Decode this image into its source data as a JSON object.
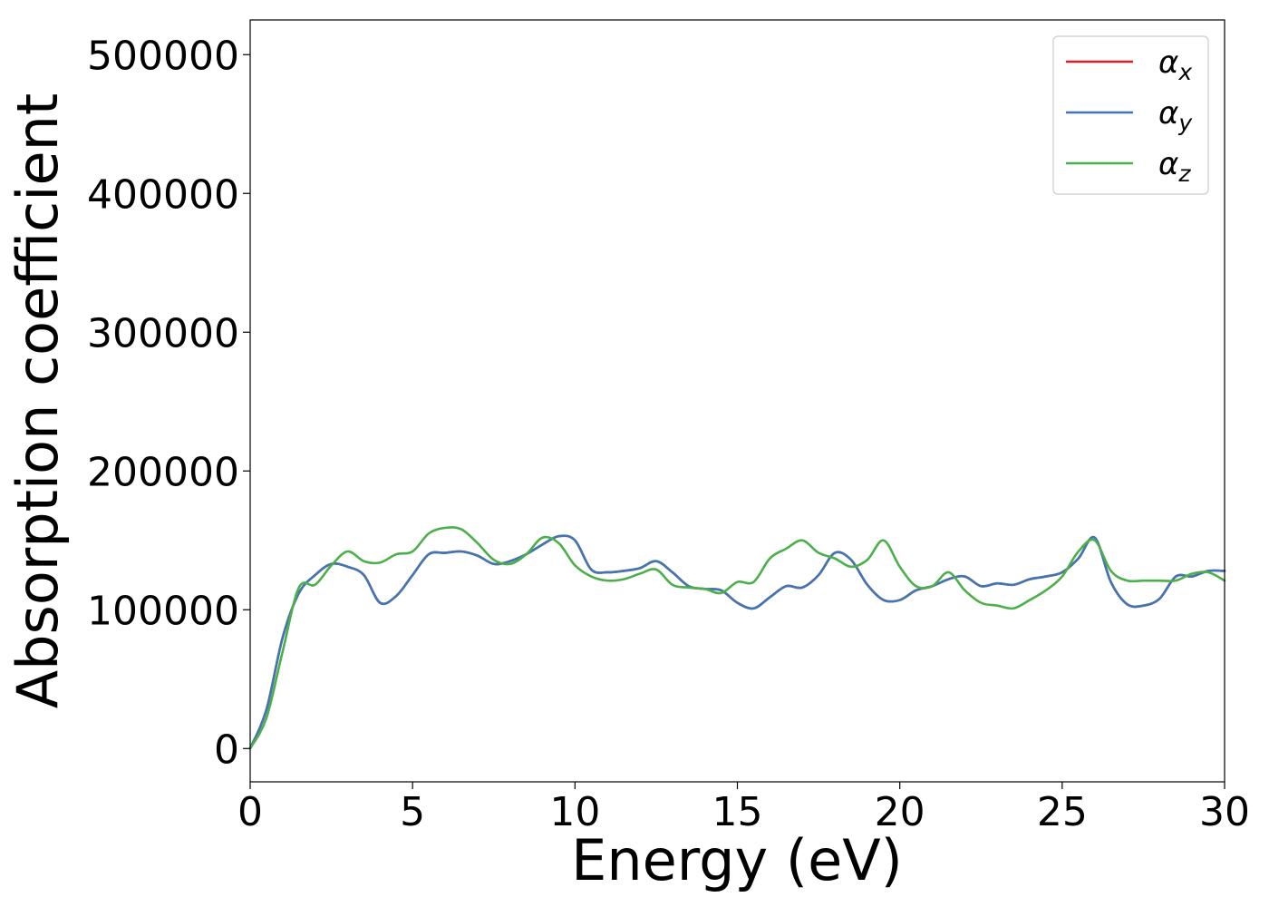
{
  "chart_data": {
    "type": "line",
    "xlabel": "Energy (eV)",
    "ylabel": "Absorption coefficient",
    "xlim": [
      0,
      30
    ],
    "ylim": [
      -24000,
      525000
    ],
    "x_ticks": [
      0,
      5,
      10,
      15,
      20,
      25,
      30
    ],
    "y_ticks": [
      0,
      100000,
      200000,
      300000,
      400000,
      500000
    ],
    "grid": false,
    "legend_position": "top-right",
    "series": [
      {
        "name": "α",
        "subscript": "x",
        "color": "#e41a1c",
        "x": [
          0,
          0.5,
          1,
          1.5,
          2,
          2.5,
          3,
          3.5,
          4,
          4.5,
          5,
          5.5,
          6,
          6.5,
          7,
          7.5,
          8,
          8.5,
          9,
          9.5,
          10,
          10.5,
          11,
          11.5,
          12,
          12.5,
          13,
          13.5,
          14,
          14.5,
          15,
          15.5,
          16,
          16.5,
          17,
          17.5,
          18,
          18.5,
          19,
          19.5,
          20,
          20.5,
          21,
          21.5,
          22,
          22.5,
          23,
          23.5,
          24,
          24.5,
          25,
          25.5,
          26,
          26.5,
          27,
          27.5,
          28,
          28.5,
          29,
          29.5,
          30
        ],
        "values": [
          0,
          28000,
          80000,
          112000,
          125000,
          133000,
          131000,
          125000,
          105000,
          110000,
          125000,
          140000,
          141000,
          142000,
          139000,
          133000,
          135000,
          140000,
          147000,
          153000,
          150000,
          129000,
          127000,
          128000,
          130000,
          135000,
          127000,
          117000,
          115000,
          114000,
          105000,
          101000,
          109000,
          117000,
          116000,
          125000,
          141000,
          136000,
          118000,
          107000,
          107000,
          114000,
          117000,
          122000,
          124000,
          117000,
          119000,
          118000,
          122000,
          124000,
          127000,
          137000,
          152000,
          120000,
          104000,
          103000,
          108000,
          124000,
          124000,
          128000,
          128000
        ]
      },
      {
        "name": "α",
        "subscript": "y",
        "color": "#3f77b5",
        "x": [
          0,
          0.5,
          1,
          1.5,
          2,
          2.5,
          3,
          3.5,
          4,
          4.5,
          5,
          5.5,
          6,
          6.5,
          7,
          7.5,
          8,
          8.5,
          9,
          9.5,
          10,
          10.5,
          11,
          11.5,
          12,
          12.5,
          13,
          13.5,
          14,
          14.5,
          15,
          15.5,
          16,
          16.5,
          17,
          17.5,
          18,
          18.5,
          19,
          19.5,
          20,
          20.5,
          21,
          21.5,
          22,
          22.5,
          23,
          23.5,
          24,
          24.5,
          25,
          25.5,
          26,
          26.5,
          27,
          27.5,
          28,
          28.5,
          29,
          29.5,
          30
        ],
        "values": [
          0,
          28000,
          80000,
          112000,
          125000,
          133000,
          131000,
          125000,
          105000,
          110000,
          125000,
          140000,
          141000,
          142000,
          139000,
          133000,
          135000,
          140000,
          147000,
          153000,
          150000,
          129000,
          127000,
          128000,
          130000,
          135000,
          127000,
          117000,
          115000,
          114000,
          105000,
          101000,
          109000,
          117000,
          116000,
          125000,
          141000,
          136000,
          118000,
          107000,
          107000,
          114000,
          117000,
          122000,
          124000,
          117000,
          119000,
          118000,
          122000,
          124000,
          127000,
          137000,
          152000,
          120000,
          104000,
          103000,
          108000,
          124000,
          124000,
          128000,
          128000
        ]
      },
      {
        "name": "α",
        "subscript": "z",
        "color": "#4daf4a",
        "x": [
          0,
          0.5,
          1,
          1.5,
          2,
          2.5,
          3,
          3.5,
          4,
          4.5,
          5,
          5.5,
          6,
          6.5,
          7,
          7.5,
          8,
          8.5,
          9,
          9.5,
          10,
          10.5,
          11,
          11.5,
          12,
          12.5,
          13,
          13.5,
          14,
          14.5,
          15,
          15.5,
          16,
          16.5,
          17,
          17.5,
          18,
          18.5,
          19,
          19.5,
          20,
          20.5,
          21,
          21.5,
          22,
          22.5,
          23,
          23.5,
          24,
          24.5,
          25,
          25.5,
          26,
          26.5,
          27,
          27.5,
          28,
          28.5,
          29,
          29.5,
          30
        ],
        "values": [
          0,
          22000,
          70000,
          116000,
          118000,
          132000,
          142000,
          135000,
          134000,
          140000,
          142000,
          155000,
          159000,
          158000,
          148000,
          136000,
          133000,
          140000,
          152000,
          148000,
          132000,
          124000,
          121000,
          122000,
          126000,
          129000,
          118000,
          116000,
          115000,
          112000,
          120000,
          120000,
          137000,
          144000,
          150000,
          141000,
          137000,
          131000,
          136000,
          150000,
          131000,
          117000,
          117000,
          127000,
          114000,
          105000,
          103000,
          101000,
          107000,
          114000,
          124000,
          142000,
          150000,
          128000,
          121000,
          121000,
          121000,
          121000,
          126000,
          127000,
          121000
        ]
      }
    ]
  }
}
